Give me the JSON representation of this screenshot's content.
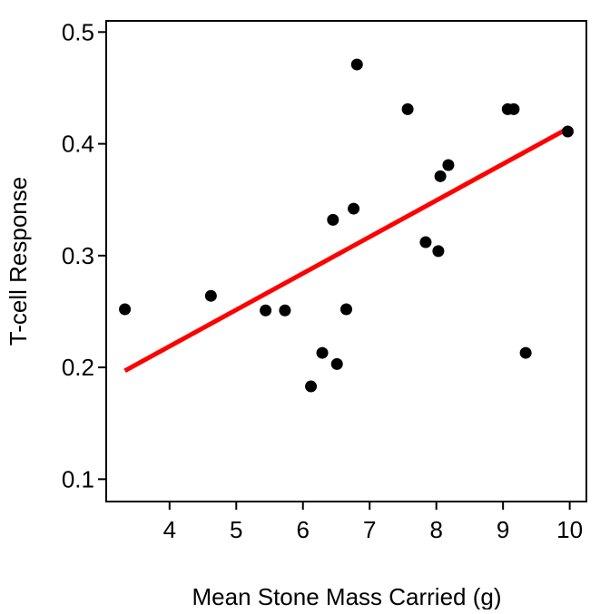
{
  "chart_data": {
    "type": "scatter",
    "title": "",
    "xlabel": "Mean Stone Mass Carried (g)",
    "ylabel": "T-cell Response",
    "xlim": [
      3.05,
      10.25
    ],
    "ylim": [
      0.08,
      0.51
    ],
    "xticks": [
      4,
      5,
      6,
      7,
      8,
      9,
      10
    ],
    "yticks": [
      0.1,
      0.2,
      0.3,
      0.4,
      0.5
    ],
    "xtick_labels": [
      "4",
      "5",
      "6",
      "7",
      "8",
      "9",
      "10"
    ],
    "ytick_labels": [
      "0.1",
      "0.2",
      "0.3",
      "0.4",
      "0.5"
    ],
    "grid": false,
    "legend": "none",
    "points": [
      {
        "x": 3.33,
        "y": 0.252
      },
      {
        "x": 4.62,
        "y": 0.264
      },
      {
        "x": 5.44,
        "y": 0.251
      },
      {
        "x": 5.73,
        "y": 0.251
      },
      {
        "x": 6.12,
        "y": 0.183
      },
      {
        "x": 6.29,
        "y": 0.213
      },
      {
        "x": 6.45,
        "y": 0.332
      },
      {
        "x": 6.51,
        "y": 0.203
      },
      {
        "x": 6.65,
        "y": 0.252
      },
      {
        "x": 6.76,
        "y": 0.342
      },
      {
        "x": 6.81,
        "y": 0.471
      },
      {
        "x": 7.57,
        "y": 0.431
      },
      {
        "x": 7.84,
        "y": 0.312
      },
      {
        "x": 8.03,
        "y": 0.304
      },
      {
        "x": 8.06,
        "y": 0.371
      },
      {
        "x": 8.18,
        "y": 0.381
      },
      {
        "x": 9.07,
        "y": 0.431
      },
      {
        "x": 9.16,
        "y": 0.431
      },
      {
        "x": 9.34,
        "y": 0.213
      },
      {
        "x": 9.97,
        "y": 0.411
      }
    ],
    "fit_line": {
      "x": [
        3.33,
        9.95
      ],
      "y": [
        0.197,
        0.413
      ]
    },
    "colors": {
      "points": "#000000",
      "fit_line": "#ff0000",
      "axis": "#000000"
    }
  }
}
